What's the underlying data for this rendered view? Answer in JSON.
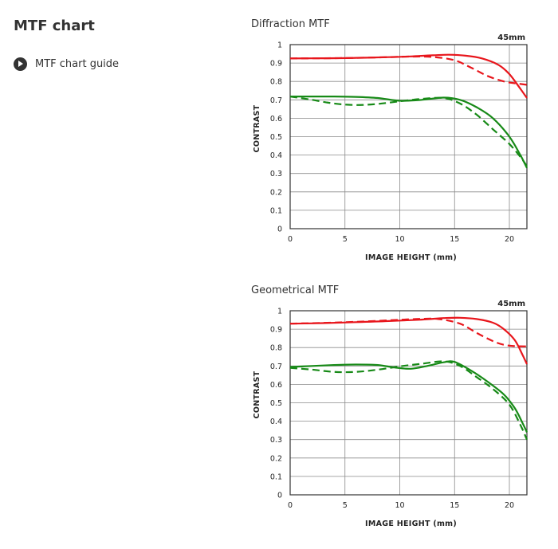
{
  "page": {
    "title": "MTF chart",
    "guide_link": "MTF chart guide"
  },
  "chart_data": [
    {
      "type": "line",
      "title": "Diffraction MTF",
      "annotation": "45mm",
      "xlabel": "IMAGE HEIGHT (mm)",
      "ylabel": "CONTRAST",
      "xlim": [
        0,
        21.6
      ],
      "ylim": [
        0,
        1
      ],
      "x_ticks": [
        "0",
        "5",
        "10",
        "15",
        "20"
      ],
      "y_ticks": [
        "0",
        "0.1",
        "0.2",
        "0.3",
        "0.4",
        "0.5",
        "0.6",
        "0.7",
        "0.8",
        "0.9",
        "1"
      ],
      "grid": true,
      "colors": {
        "red": "#e8161c",
        "green": "#178a17"
      },
      "series": [
        {
          "color": "red",
          "style": "solid",
          "x": [
            0,
            3,
            6,
            9,
            11,
            13,
            14.5,
            16,
            17.5,
            19,
            20,
            21,
            21.6
          ],
          "y": [
            0.925,
            0.926,
            0.928,
            0.932,
            0.936,
            0.942,
            0.945,
            0.94,
            0.925,
            0.89,
            0.84,
            0.76,
            0.71
          ]
        },
        {
          "color": "red",
          "style": "dashed",
          "x": [
            0,
            3,
            6,
            9,
            11,
            13,
            15,
            16.5,
            18,
            19.5,
            20.5,
            21.6
          ],
          "y": [
            0.925,
            0.926,
            0.928,
            0.932,
            0.935,
            0.933,
            0.915,
            0.875,
            0.83,
            0.8,
            0.79,
            0.782
          ]
        },
        {
          "color": "green",
          "style": "solid",
          "x": [
            0,
            2,
            4,
            6,
            8,
            10,
            12,
            14,
            15.5,
            17,
            18.5,
            20,
            21,
            21.6
          ],
          "y": [
            0.718,
            0.718,
            0.718,
            0.716,
            0.71,
            0.695,
            0.7,
            0.712,
            0.7,
            0.66,
            0.6,
            0.5,
            0.4,
            0.33
          ]
        },
        {
          "color": "green",
          "style": "dashed",
          "x": [
            0,
            2,
            4,
            6,
            8,
            10,
            12,
            14,
            15.5,
            17,
            18.5,
            20,
            21,
            21.6
          ],
          "y": [
            0.718,
            0.7,
            0.68,
            0.672,
            0.678,
            0.692,
            0.705,
            0.71,
            0.68,
            0.62,
            0.54,
            0.46,
            0.39,
            0.34
          ]
        }
      ]
    },
    {
      "type": "line",
      "title": "Geometrical MTF",
      "annotation": "45mm",
      "xlabel": "IMAGE HEIGHT (mm)",
      "ylabel": "CONTRAST",
      "xlim": [
        0,
        21.6
      ],
      "ylim": [
        0,
        1
      ],
      "x_ticks": [
        "0",
        "5",
        "10",
        "15",
        "20"
      ],
      "y_ticks": [
        "0",
        "0.1",
        "0.2",
        "0.3",
        "0.4",
        "0.5",
        "0.6",
        "0.7",
        "0.8",
        "0.9",
        "1"
      ],
      "grid": true,
      "colors": {
        "red": "#e8161c",
        "green": "#178a17"
      },
      "series": [
        {
          "color": "red",
          "style": "solid",
          "x": [
            0,
            3,
            6,
            9,
            12,
            14,
            15.5,
            17,
            18.5,
            19.5,
            20.5,
            21.2,
            21.6
          ],
          "y": [
            0.93,
            0.933,
            0.938,
            0.944,
            0.952,
            0.96,
            0.962,
            0.955,
            0.935,
            0.9,
            0.84,
            0.76,
            0.71
          ]
        },
        {
          "color": "red",
          "style": "dashed",
          "x": [
            0,
            3,
            6,
            9,
            11.5,
            13.5,
            15.5,
            17,
            18.5,
            19.5,
            20.5,
            21.6
          ],
          "y": [
            0.93,
            0.934,
            0.94,
            0.948,
            0.955,
            0.955,
            0.93,
            0.88,
            0.835,
            0.815,
            0.808,
            0.806
          ]
        },
        {
          "color": "green",
          "style": "solid",
          "x": [
            0,
            2,
            4,
            6,
            8,
            9.5,
            11,
            12.5,
            14,
            15,
            16.5,
            18,
            19.5,
            20.5,
            21.2,
            21.6
          ],
          "y": [
            0.695,
            0.7,
            0.705,
            0.708,
            0.705,
            0.692,
            0.685,
            0.7,
            0.72,
            0.722,
            0.675,
            0.615,
            0.545,
            0.47,
            0.39,
            0.34
          ]
        },
        {
          "color": "green",
          "style": "dashed",
          "x": [
            0,
            2,
            4,
            6,
            8,
            10,
            12,
            14,
            15.5,
            17,
            18.5,
            20,
            21,
            21.6
          ],
          "y": [
            0.69,
            0.68,
            0.668,
            0.668,
            0.68,
            0.698,
            0.712,
            0.725,
            0.7,
            0.64,
            0.575,
            0.49,
            0.38,
            0.3
          ]
        }
      ]
    }
  ]
}
